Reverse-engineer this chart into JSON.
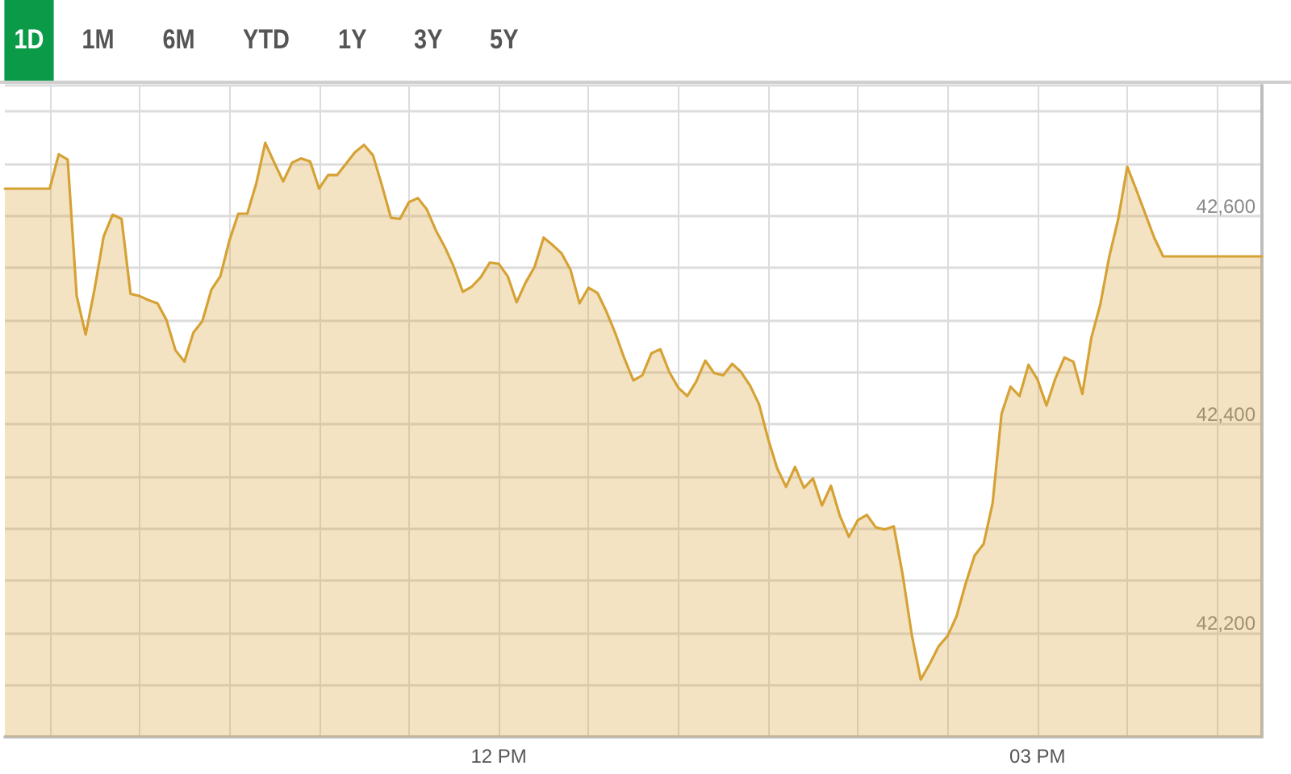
{
  "chart_data": {
    "type": "area",
    "annotations": [
      "1D",
      "1M",
      "6M",
      "YTD",
      "1Y",
      "3Y",
      "5Y"
    ],
    "categories": [
      null,
      null,
      null,
      null,
      null,
      null,
      null,
      null,
      null,
      null,
      null,
      null,
      null,
      null,
      null,
      null,
      null,
      null,
      null,
      null,
      null,
      null,
      null,
      null,
      null,
      null,
      null,
      null,
      null,
      null,
      null,
      null,
      null,
      null,
      null,
      null,
      null,
      null,
      null,
      null,
      null,
      null,
      null,
      null,
      null,
      null,
      null,
      null,
      null,
      null,
      null,
      null,
      null,
      null,
      null,
      "12 PM",
      null,
      null,
      null,
      null,
      null,
      null,
      null,
      null,
      null,
      null,
      null,
      null,
      null,
      null,
      null,
      null,
      null,
      null,
      null,
      null,
      null,
      null,
      null,
      null,
      null,
      null,
      null,
      null,
      null,
      null,
      null,
      null,
      null,
      null,
      null,
      null,
      null,
      null,
      null,
      null,
      null,
      null,
      null,
      null,
      null,
      null,
      null,
      null,
      null,
      null,
      null,
      null,
      null,
      null,
      null,
      null,
      null,
      null,
      null,
      "03 PM",
      null,
      null,
      null,
      null,
      null,
      null,
      null,
      null,
      null,
      null,
      null,
      null,
      null,
      null,
      null,
      null,
      null,
      null,
      null,
      null,
      null,
      null,
      null,
      null,
      null
    ],
    "series": [
      {
        "color": "#d6a235",
        "values": [
          42626,
          42626,
          42626,
          42626,
          42626,
          42626,
          42659,
          42654,
          42523,
          42486,
          42530,
          42580,
          42601,
          42597,
          42525,
          42523,
          42519,
          42516,
          42500,
          42471,
          42460,
          42488,
          42499,
          42529,
          42542,
          42576,
          42602,
          42602,
          42631,
          42670,
          42651,
          42633,
          42651,
          42655,
          42652,
          42626,
          42639,
          42639,
          42650,
          42661,
          42668,
          42658,
          42629,
          42598,
          42597,
          42613,
          42617,
          42606,
          42586,
          42570,
          42551,
          42527,
          42532,
          42541,
          42555,
          42554,
          42542,
          42517,
          42536,
          42551,
          42579,
          42572,
          42564,
          42548,
          42516,
          42531,
          42526,
          42508,
          42487,
          42463,
          42442,
          42447,
          42468,
          42472,
          42450,
          42435,
          42427,
          42441,
          42461,
          42449,
          42447,
          42458,
          42450,
          42437,
          42419,
          42386,
          42358,
          42340,
          42359,
          42339,
          42348,
          42322,
          42341,
          42312,
          42292,
          42308,
          42313,
          42301,
          42299,
          42302,
          42255,
          42198,
          42155,
          42170,
          42187,
          42197,
          42216,
          42247,
          42274,
          42285,
          42324,
          42410,
          42436,
          42427,
          42457,
          42443,
          42418,
          42444,
          42464,
          42460,
          42429,
          42483,
          42515,
          42561,
          42597,
          42647,
          42625,
          42602,
          42579,
          42561,
          42561,
          42561,
          42561,
          42561,
          42561,
          42561,
          42561,
          42561,
          42561,
          42561,
          42561
        ]
      }
    ],
    "ylim": [
      42100,
      42725
    ],
    "yticks": [
      {
        "value": 42100,
        "label": null
      },
      {
        "value": 42150,
        "label": null
      },
      {
        "value": 42200,
        "label": "42,200"
      },
      {
        "value": 42250,
        "label": null
      },
      {
        "value": 42300,
        "label": null
      },
      {
        "value": 42350,
        "label": null
      },
      {
        "value": 42400,
        "label": "42,400"
      },
      {
        "value": 42450,
        "label": null
      },
      {
        "value": 42500,
        "label": null
      },
      {
        "value": 42550,
        "label": null
      },
      {
        "value": 42600,
        "label": "42,600"
      },
      {
        "value": 42650,
        "label": null
      },
      {
        "value": 42700,
        "label": null
      }
    ],
    "grid": true,
    "marker": "none",
    "line_style": "solid"
  }
}
